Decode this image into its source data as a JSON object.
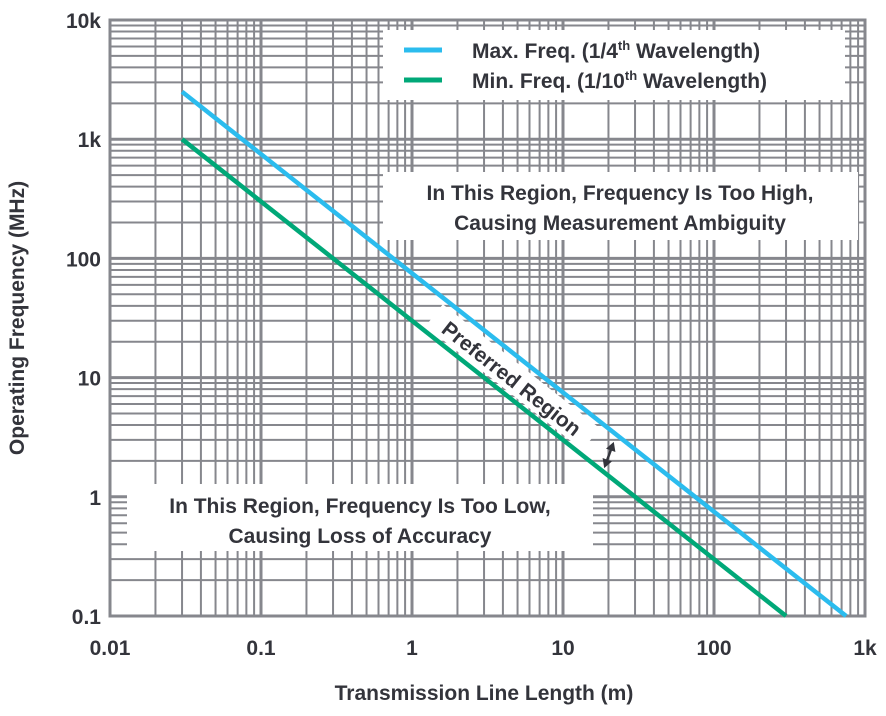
{
  "chart_data": {
    "type": "line",
    "title": "",
    "xlabel": "Transmission Line Length (m)",
    "ylabel": "Operating Frequency (MHz)",
    "xscale": "log",
    "yscale": "log",
    "xlim": [
      0.01,
      1000
    ],
    "ylim": [
      0.1,
      10000
    ],
    "grid": true,
    "x_ticks": [
      "0.01",
      "0.1",
      "1",
      "10",
      "100",
      "1k"
    ],
    "y_ticks": [
      "0.1",
      "1",
      "10",
      "100",
      "1k",
      "10k"
    ],
    "legend_position": "top-right",
    "series": [
      {
        "name": "Max. Freq. (1/4th Wavelength)",
        "legend_main": "Max. Freq. (1/4",
        "legend_sup": "th",
        "legend_end": " Wavelength)",
        "color": "#2bbcee",
        "x": [
          0.03,
          750
        ],
        "y": [
          2500,
          0.1
        ]
      },
      {
        "name": "Min. Freq. (1/10th Wavelength)",
        "legend_main": "Min. Freq. (1/10",
        "legend_sup": "th",
        "legend_end": " Wavelength)",
        "color": "#00a878",
        "x": [
          0.03,
          300
        ],
        "y": [
          1000,
          0.1
        ]
      }
    ],
    "annotations": {
      "high_line1": "In This Region, Frequency Is Too High,",
      "high_line2": "Causing Measurement Ambiguity",
      "low_line1": "In This Region, Frequency Is Too Low,",
      "low_line2": "Causing Loss of Accuracy",
      "preferred": "Preferred Region"
    }
  }
}
